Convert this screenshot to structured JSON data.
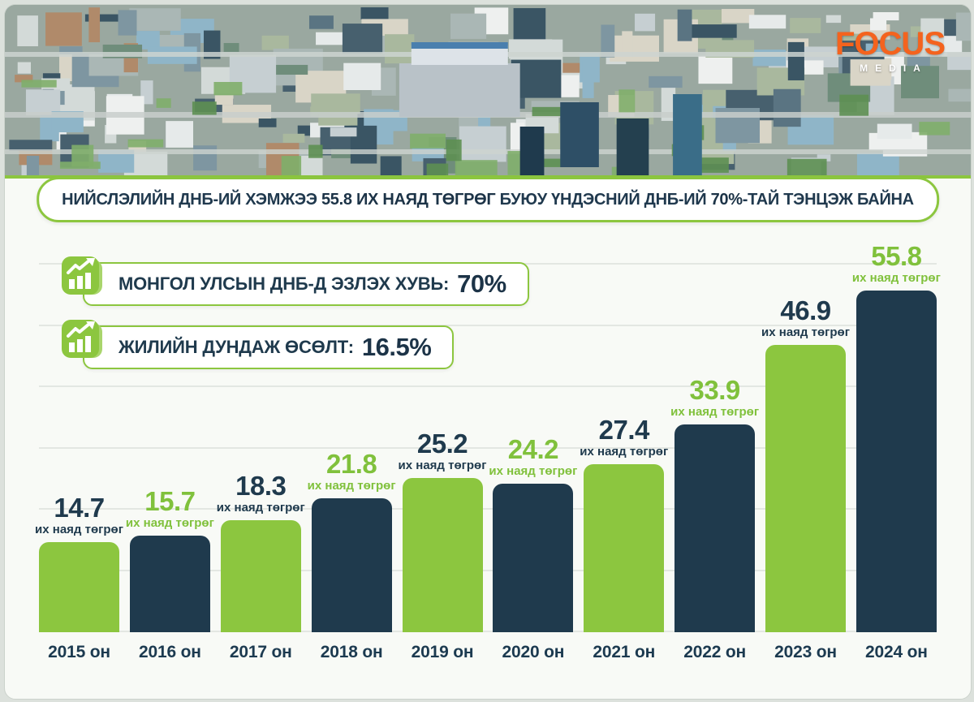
{
  "logo": {
    "title": "FOCUS",
    "subtitle": "MEDIA",
    "color": "#F4631E"
  },
  "banner": {
    "segments": [
      {
        "text": "НИЙСЛЭЛИЙН ДНБ-ИЙ ХЭМЖЭЭ ",
        "bold": false
      },
      {
        "text": "55.8 ИХ НАЯД ТӨГРӨГ",
        "bold": true
      },
      {
        "text": " БУЮУ ҮНДЭСНИЙ ДНБ-ИЙ ",
        "bold": false
      },
      {
        "text": "70%",
        "bold": true
      },
      {
        "text": "-ТАЙ ТЭНЦЭЖ БАЙНА",
        "bold": false
      }
    ]
  },
  "callouts": [
    {
      "icon": "growth-chart-icon",
      "label": "МОНГОЛ УЛСЫН ДНБ-Д ЭЗЛЭХ ХУВЬ:",
      "value": "70%"
    },
    {
      "icon": "growth-chart-icon",
      "label": "ЖИЛИЙН ДУНДАЖ ӨСӨЛТ:",
      "value": "16.5%"
    }
  ],
  "chart_data": {
    "type": "bar",
    "title": "НИЙСЛЭЛИЙН ДНБ-ИЙ ХЭМЖЭЭ 55.8 ИХ НАЯД ТӨГРӨГ БУЮУ ҮНДЭСНИЙ ДНБ-ИЙ 70%-ТАЙ ТЭНЦЭЖ БАЙНА",
    "categories": [
      "2015 он",
      "2016 он",
      "2017 он",
      "2018 он",
      "2019 он",
      "2020 он",
      "2021 он",
      "2022 он",
      "2023 он",
      "2024 он"
    ],
    "values": [
      14.7,
      15.7,
      18.3,
      21.8,
      25.2,
      24.2,
      27.4,
      33.9,
      46.9,
      55.8
    ],
    "value_unit_label": "их наяд төгрөг",
    "xlabel": "",
    "ylabel": "их наяд төгрөг",
    "ylim": [
      0,
      60
    ],
    "gridline_step": 10,
    "grid": "horizontal",
    "legend": "none",
    "bar_color_pattern": [
      "green",
      "navy"
    ],
    "label_color_rule": "green bars get navy labels, navy bars get green labels",
    "colors": {
      "green": "#8CC63F",
      "navy": "#1F3A4D",
      "grid": "#E3E7E2"
    }
  }
}
